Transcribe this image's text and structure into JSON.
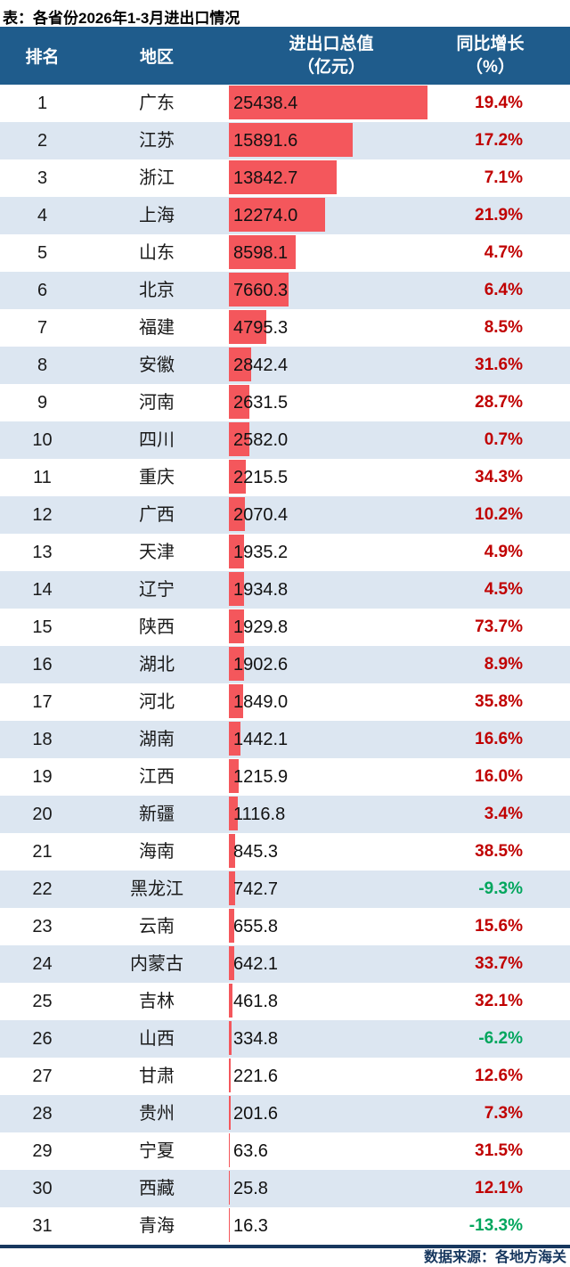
{
  "title": "表：各省份2026年1-3月进出口情况",
  "source": "数据来源：各地方海关",
  "header": {
    "rank": "排名",
    "region": "地区",
    "value_line1": "进出口总值",
    "value_line2": "（亿元）",
    "growth_line1": "同比增长",
    "growth_line2": "（%）"
  },
  "colors": {
    "header_bg": "#1F5C8C",
    "header_text": "#FFFFFF",
    "bar": "#F4575C",
    "row_alt_bg": "#DCE6F1",
    "growth_positive": "#C00000",
    "growth_negative": "#00A65D",
    "separator": "#17375E",
    "text": "#1A1A1A"
  },
  "chart_data": {
    "type": "bar",
    "title": "表：各省份2026年1-3月进出口情况",
    "columns": [
      "排名",
      "地区",
      "进出口总值（亿元）",
      "同比增长（%）"
    ],
    "value_axis_max": 25438.4,
    "legend": "none",
    "source": "数据来源：各地方海关",
    "rows": [
      {
        "rank": 1,
        "region": "广东",
        "value": 25438.4,
        "growth_pct": 19.4
      },
      {
        "rank": 2,
        "region": "江苏",
        "value": 15891.6,
        "growth_pct": 17.2
      },
      {
        "rank": 3,
        "region": "浙江",
        "value": 13842.7,
        "growth_pct": 7.1
      },
      {
        "rank": 4,
        "region": "上海",
        "value": 12274.0,
        "growth_pct": 21.9
      },
      {
        "rank": 5,
        "region": "山东",
        "value": 8598.1,
        "growth_pct": 4.7
      },
      {
        "rank": 6,
        "region": "北京",
        "value": 7660.3,
        "growth_pct": 6.4
      },
      {
        "rank": 7,
        "region": "福建",
        "value": 4795.3,
        "growth_pct": 8.5
      },
      {
        "rank": 8,
        "region": "安徽",
        "value": 2842.4,
        "growth_pct": 31.6
      },
      {
        "rank": 9,
        "region": "河南",
        "value": 2631.5,
        "growth_pct": 28.7
      },
      {
        "rank": 10,
        "region": "四川",
        "value": 2582.0,
        "growth_pct": 0.7
      },
      {
        "rank": 11,
        "region": "重庆",
        "value": 2215.5,
        "growth_pct": 34.3
      },
      {
        "rank": 12,
        "region": "广西",
        "value": 2070.4,
        "growth_pct": 10.2
      },
      {
        "rank": 13,
        "region": "天津",
        "value": 1935.2,
        "growth_pct": 4.9
      },
      {
        "rank": 14,
        "region": "辽宁",
        "value": 1934.8,
        "growth_pct": 4.5
      },
      {
        "rank": 15,
        "region": "陕西",
        "value": 1929.8,
        "growth_pct": 73.7
      },
      {
        "rank": 16,
        "region": "湖北",
        "value": 1902.6,
        "growth_pct": 8.9
      },
      {
        "rank": 17,
        "region": "河北",
        "value": 1849.0,
        "growth_pct": 35.8
      },
      {
        "rank": 18,
        "region": "湖南",
        "value": 1442.1,
        "growth_pct": 16.6
      },
      {
        "rank": 19,
        "region": "江西",
        "value": 1215.9,
        "growth_pct": 16.0
      },
      {
        "rank": 20,
        "region": "新疆",
        "value": 1116.8,
        "growth_pct": 3.4
      },
      {
        "rank": 21,
        "region": "海南",
        "value": 845.3,
        "growth_pct": 38.5
      },
      {
        "rank": 22,
        "region": "黑龙江",
        "value": 742.7,
        "growth_pct": -9.3
      },
      {
        "rank": 23,
        "region": "云南",
        "value": 655.8,
        "growth_pct": 15.6
      },
      {
        "rank": 24,
        "region": "内蒙古",
        "value": 642.1,
        "growth_pct": 33.7
      },
      {
        "rank": 25,
        "region": "吉林",
        "value": 461.8,
        "growth_pct": 32.1
      },
      {
        "rank": 26,
        "region": "山西",
        "value": 334.8,
        "growth_pct": -6.2
      },
      {
        "rank": 27,
        "region": "甘肃",
        "value": 221.6,
        "growth_pct": 12.6
      },
      {
        "rank": 28,
        "region": "贵州",
        "value": 201.6,
        "growth_pct": 7.3
      },
      {
        "rank": 29,
        "region": "宁夏",
        "value": 63.6,
        "growth_pct": 31.5
      },
      {
        "rank": 30,
        "region": "西藏",
        "value": 25.8,
        "growth_pct": 12.1
      },
      {
        "rank": 31,
        "region": "青海",
        "value": 16.3,
        "growth_pct": -13.3
      }
    ]
  }
}
